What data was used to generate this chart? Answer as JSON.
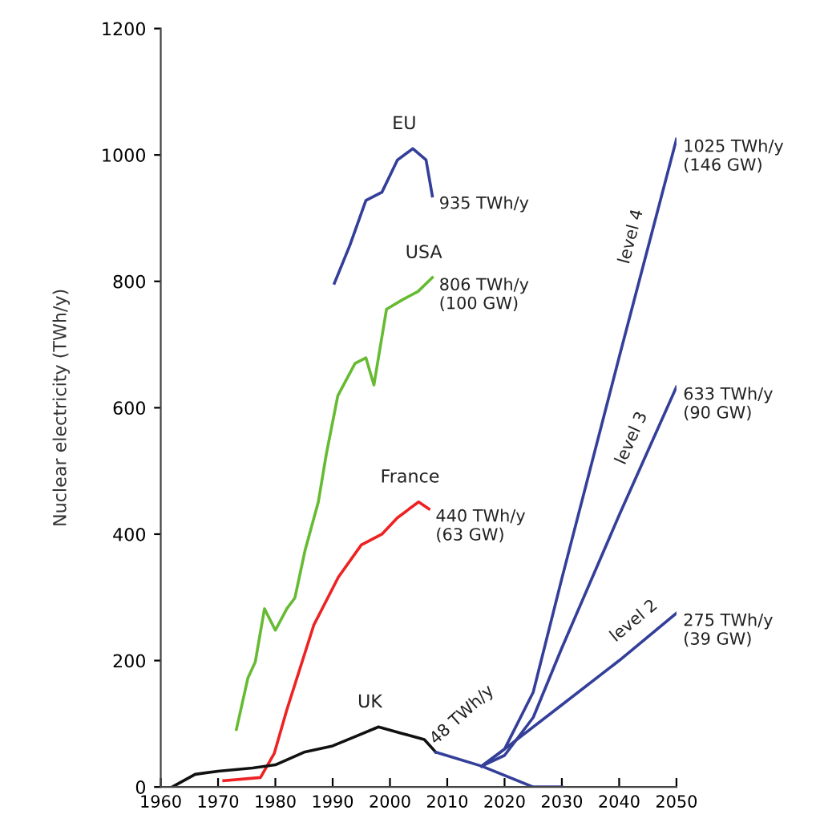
{
  "chart_data": {
    "type": "line",
    "ylabel": "Nuclear electricity (TWh/y)",
    "xlim": [
      1960,
      2050
    ],
    "xticks": [
      1960,
      1970,
      1980,
      1990,
      2000,
      2010,
      2020,
      2030,
      2040,
      2050
    ],
    "ylim": [
      0,
      1200
    ],
    "yticks": [
      0,
      200,
      400,
      600,
      800,
      1000,
      1200
    ],
    "grid": false,
    "marker": "none",
    "line_style": "solid",
    "series": [
      {
        "name": "EU",
        "color": "#333f99",
        "x": [
          1990.3,
          1993,
          1995.8,
          1998.6,
          2001.3,
          2004,
          2006.3,
          2007.4
        ],
        "values": [
          797,
          857,
          928,
          941,
          992,
          1010,
          992,
          935
        ]
      },
      {
        "name": "USA",
        "color": "#66bb33",
        "x": [
          1973.2,
          1975.2,
          1976.5,
          1978.1,
          1980,
          1982,
          1983.4,
          1985.2,
          1987.5,
          1988.9,
          1990.9,
          1993.9,
          1995.8,
          1997.2,
          1999.4,
          2002.2,
          2004.9,
          2007.4
        ],
        "values": [
          91,
          172,
          198,
          282,
          248,
          282,
          299,
          375,
          451,
          527,
          619,
          670,
          679,
          636,
          756,
          771,
          784,
          806
        ]
      },
      {
        "name": "France",
        "color": "#ee2222",
        "x": [
          1971,
          1977.4,
          1979.8,
          1982,
          1986.7,
          1991,
          1995,
          1998.6,
          2001.3,
          2005,
          2006.8
        ],
        "values": [
          10,
          15,
          53,
          122,
          256,
          332,
          383,
          400,
          426,
          451,
          440
        ]
      },
      {
        "name": "UK",
        "color": "#111111",
        "x": [
          1962,
          1966,
          1970,
          1976,
          1980,
          1985,
          1990,
          1994,
          1998,
          2002,
          2006,
          2008
        ],
        "values": [
          0,
          20,
          25,
          30,
          35,
          55,
          65,
          80,
          95,
          85,
          75,
          55
        ]
      },
      {
        "color": "#333f99",
        "x": [
          2008,
          2016,
          2025,
          2030
        ],
        "values": [
          55,
          33,
          0,
          0
        ]
      },
      {
        "name": "level 2",
        "color": "#333f99",
        "x": [
          2016,
          2020,
          2030,
          2040,
          2050
        ],
        "values": [
          33,
          60,
          130,
          200,
          275
        ]
      },
      {
        "name": "level 3",
        "color": "#333f99",
        "x": [
          2016,
          2020,
          2025,
          2030,
          2040,
          2050
        ],
        "values": [
          33,
          50,
          110,
          220,
          430,
          633
        ]
      },
      {
        "name": "level 4",
        "color": "#333f99",
        "x": [
          2016,
          2020,
          2025,
          2030,
          2040,
          2050
        ],
        "values": [
          33,
          60,
          150,
          330,
          680,
          1025
        ]
      }
    ],
    "annotations": [
      {
        "text": "935 TWh/y",
        "x": 2007.4,
        "y": 935
      },
      {
        "text": "806 TWh/y\n(100 GW)",
        "x": 2007.4,
        "y": 806
      },
      {
        "text": "440 TWh/y\n(63 GW)",
        "x": 2006.8,
        "y": 440
      },
      {
        "text": "48 TWh/y",
        "x": 2008,
        "y": 55
      },
      {
        "text": "1025 TWh/y\n(146 GW)",
        "x": 2050,
        "y": 1025
      },
      {
        "text": "633 TWh/y\n(90 GW)",
        "x": 2050,
        "y": 633
      },
      {
        "text": "275 TWh/y\n(39 GW)",
        "x": 2050,
        "y": 275
      }
    ]
  }
}
